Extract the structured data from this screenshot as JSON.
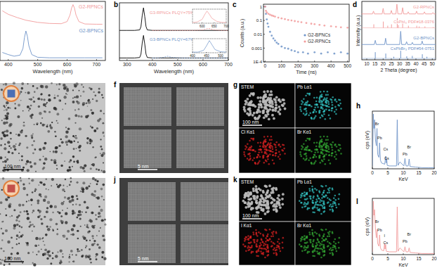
{
  "chart_data": [
    {
      "type": "line",
      "xlabel": "Wavelength (nm)",
      "xlim": [
        372,
        730
      ],
      "xticks": [
        400,
        500,
        600,
        700
      ],
      "ylim": [
        0,
        2.2
      ],
      "tick_labels": "x",
      "series": [
        {
          "name": "G2-RPNCs",
          "color": "#f29b9b",
          "x": [
            380,
            400,
            430,
            460,
            500,
            540,
            580,
            600,
            610,
            615,
            620,
            625,
            630,
            640,
            660,
            700,
            720
          ],
          "values": [
            1.85,
            1.72,
            1.6,
            1.5,
            1.42,
            1.38,
            1.37,
            1.45,
            1.7,
            1.95,
            2.08,
            1.95,
            1.7,
            1.45,
            1.36,
            1.35,
            1.35
          ]
        },
        {
          "name": "G2-BPNCs",
          "color": "#6f94c8",
          "x": [
            380,
            400,
            420,
            440,
            450,
            455,
            460,
            465,
            470,
            480,
            500,
            540,
            600,
            660,
            720
          ],
          "values": [
            0.3,
            0.22,
            0.16,
            0.2,
            0.45,
            0.85,
            1.1,
            0.9,
            0.55,
            0.22,
            0.12,
            0.1,
            0.1,
            0.1,
            0.1
          ]
        }
      ]
    },
    {
      "type": "line",
      "panel": "b",
      "xlabel": "Wavelength (nm)",
      "xlim": [
        270,
        700
      ],
      "xticks": [
        300,
        400,
        500,
        600,
        700
      ],
      "ylim": [
        0,
        2.3
      ],
      "tick_labels": "x",
      "series": [
        {
          "color": "#000000",
          "x": [
            270,
            300,
            330,
            350,
            355,
            360,
            365,
            370,
            375,
            380,
            400,
            450,
            500,
            600,
            700
          ],
          "values": [
            1.2,
            1.2,
            1.2,
            1.22,
            1.35,
            1.8,
            2.1,
            1.75,
            1.35,
            1.22,
            1.2,
            1.2,
            1.2,
            1.2,
            1.2
          ]
        },
        {
          "name": "G3-RPNCs PLQY=75%",
          "color": "#f29b9b",
          "line_style": "dashed",
          "x": [
            400,
            560,
            580,
            600,
            610,
            620,
            630,
            640,
            660,
            680,
            700
          ],
          "values": [
            1.2,
            1.2,
            1.21,
            1.22,
            1.25,
            1.28,
            1.26,
            1.23,
            1.21,
            1.2,
            1.2
          ]
        },
        {
          "color": "#000000",
          "x": [
            270,
            300,
            330,
            350,
            355,
            360,
            365,
            370,
            375,
            380,
            400,
            450,
            500,
            600,
            700
          ],
          "values": [
            0.1,
            0.1,
            0.1,
            0.12,
            0.25,
            0.7,
            1.0,
            0.65,
            0.25,
            0.12,
            0.1,
            0.1,
            0.1,
            0.1,
            0.1
          ]
        },
        {
          "name": "G3-BPNCs PLQY=67%",
          "color": "#6f94c8",
          "line_style": "dashed",
          "x": [
            400,
            420,
            440,
            450,
            460,
            470,
            480,
            500,
            520,
            600,
            700
          ],
          "values": [
            0.1,
            0.1,
            0.12,
            0.14,
            0.17,
            0.14,
            0.12,
            0.11,
            0.1,
            0.1,
            0.1
          ]
        }
      ]
    },
    {
      "type": "line",
      "xlim": [
        560,
        700
      ],
      "xticks": [
        600,
        650,
        700
      ],
      "ylim": [
        0,
        1.1
      ],
      "tick_labels": "x",
      "series": [
        {
          "color": "#f29b9b",
          "x": [
            560,
            580,
            600,
            610,
            620,
            630,
            640,
            660,
            680,
            700
          ],
          "values": [
            0.05,
            0.1,
            0.3,
            0.65,
            0.95,
            0.7,
            0.4,
            0.15,
            0.07,
            0.05
          ]
        }
      ]
    },
    {
      "type": "line",
      "xlim": [
        400,
        520
      ],
      "xticks": [
        400,
        450,
        500
      ],
      "ylim": [
        0,
        1.1
      ],
      "tick_labels": "x",
      "series": [
        {
          "color": "#6f94c8",
          "x": [
            400,
            420,
            440,
            450,
            460,
            470,
            480,
            500,
            520
          ],
          "values": [
            0.05,
            0.05,
            0.2,
            0.55,
            0.95,
            0.6,
            0.25,
            0.08,
            0.05
          ]
        }
      ]
    },
    {
      "type": "scatter",
      "panel": "c",
      "xlabel": "Time (ns)",
      "ylabel": "Counts (a.u.)",
      "log": "y",
      "xlim": [
        -10,
        510
      ],
      "xticks": [
        0,
        100,
        200,
        300,
        400,
        500
      ],
      "ylim": [
        0.0001,
        1.5
      ],
      "yticks": [
        1,
        0.1,
        0.01,
        0.001,
        {
          "value": 0.0001,
          "label": "1E-4"
        }
      ],
      "legend": "right",
      "marker": "circle",
      "series": [
        {
          "name": "G2-BPNCs",
          "color": "#6f94c8",
          "x": [
            0,
            5,
            10,
            15,
            20,
            30,
            40,
            50,
            60,
            70,
            80,
            100,
            120,
            140,
            160,
            180,
            200,
            230,
            260,
            300,
            340,
            380,
            420,
            460,
            500
          ],
          "values": [
            1,
            0.3,
            0.12,
            0.06,
            0.035,
            0.015,
            0.008,
            0.005,
            0.0035,
            0.0025,
            0.002,
            0.0013,
            0.001,
            0.0009,
            0.0007,
            0.0006,
            0.0005,
            0.0005,
            0.0004,
            0.0005,
            0.0004,
            0.0005,
            0.0004,
            0.0005,
            0.0004
          ]
        },
        {
          "name": "G2-RPNCs",
          "color": "#f29b9b",
          "x": [
            0,
            5,
            10,
            20,
            30,
            40,
            50,
            60,
            80,
            100,
            120,
            140,
            160,
            180,
            200,
            220,
            250,
            280,
            300,
            330,
            360,
            400,
            430,
            460,
            500
          ],
          "values": [
            1,
            0.5,
            0.38,
            0.3,
            0.26,
            0.23,
            0.21,
            0.19,
            0.16,
            0.14,
            0.125,
            0.11,
            0.1,
            0.09,
            0.082,
            0.075,
            0.066,
            0.058,
            0.054,
            0.048,
            0.043,
            0.038,
            0.035,
            0.032,
            0.03
          ]
        }
      ]
    },
    {
      "type": "line",
      "panel": "d",
      "xlabel": "2 Theta (degree)",
      "ylabel": "Intensity (a.u.)",
      "xlim": [
        7,
        52
      ],
      "xticks": [
        10,
        15,
        20,
        25,
        30,
        35,
        40,
        45,
        50
      ],
      "ylim": [
        0,
        4.2
      ],
      "tick_labels": "x",
      "series": [
        {
          "name": "G2-RPNCs",
          "color": "#f29b9b",
          "x": [
            7,
            13.5,
            14.1,
            14.7,
            19.4,
            20.0,
            20.6,
            24.4,
            25.0,
            25.6,
            27.8,
            28.4,
            29.0,
            31.3,
            31.9,
            32.5,
            34.7,
            35.3,
            35.9,
            39.8,
            40.4,
            41.0,
            44.6,
            45.2,
            45.8,
            49.8,
            50.4,
            51,
            52
          ],
          "values": [
            3.3,
            3.3,
            3.5,
            3.3,
            3.3,
            3.7,
            3.3,
            3.3,
            3.55,
            3.3,
            3.3,
            4.0,
            3.3,
            3.3,
            3.75,
            3.3,
            3.3,
            3.45,
            3.3,
            3.3,
            3.5,
            3.3,
            3.3,
            3.45,
            3.3,
            3.3,
            3.4,
            3.3,
            3.3
          ]
        },
        {
          "name": "CsPbI₃ PDF#18-0376",
          "type": "stem",
          "color": "#f29b9b",
          "base": 2.3,
          "x": [
            14.3,
            20.1,
            22.8,
            25.1,
            28.6,
            29.3,
            31.9,
            35.4,
            40.5,
            42.0,
            45.5,
            50.5
          ],
          "values": [
            2.55,
            2.75,
            2.45,
            2.55,
            3.0,
            2.5,
            2.8,
            2.45,
            2.45,
            2.4,
            2.4,
            2.35
          ]
        },
        {
          "name": "G2-BPNCs",
          "color": "#6f94c8",
          "x": [
            7,
            14.6,
            15.2,
            15.8,
            20.9,
            21.5,
            22.1,
            30.1,
            30.7,
            31.3,
            33.7,
            34.3,
            34.9,
            37.2,
            37.8,
            38.4,
            43.2,
            43.8,
            44.4,
            52
          ],
          "values": [
            1.1,
            1.1,
            1.4,
            1.1,
            1.1,
            1.55,
            1.1,
            1.1,
            2.05,
            1.1,
            1.1,
            1.3,
            1.1,
            1.1,
            1.25,
            1.1,
            1.1,
            1.35,
            1.1,
            1.1
          ]
        },
        {
          "name": "CsPbBr₃ PDF#54-0751",
          "type": "stem",
          "color": "#6f94c8",
          "base": 0.1,
          "x": [
            15.2,
            21.6,
            26.5,
            30.7,
            34.4,
            37.8,
            43.9,
            46.7
          ],
          "values": [
            0.55,
            0.45,
            0.22,
            0.65,
            0.25,
            0.28,
            0.4,
            0.22
          ]
        }
      ]
    },
    {
      "type": "line",
      "panel": "h",
      "xlabel": "KeV",
      "ylabel": "cps (eV)",
      "xlim": [
        0,
        20
      ],
      "xticks": [
        0,
        5,
        10,
        15,
        20
      ],
      "ylim": [
        0,
        1
      ],
      "tick_labels": "x",
      "series": [
        {
          "color": "#6f94c8",
          "x": [
            0,
            0.2,
            0.3,
            0.5,
            0.7,
            1,
            1.3,
            1.5,
            1.7,
            2.1,
            2.35,
            2.6,
            3,
            4,
            4.3,
            4.5,
            4.65,
            4.8,
            5.5,
            7.8,
            8.05,
            8.3,
            8.9,
            10.2,
            10.55,
            10.9,
            11.6,
            11.9,
            12.2,
            14,
            16,
            18,
            20
          ],
          "values": [
            0.05,
            0.55,
            0.95,
            0.7,
            0.85,
            0.5,
            0.4,
            0.7,
            0.25,
            0.2,
            0.45,
            0.15,
            0.1,
            0.08,
            0.22,
            0.1,
            0.18,
            0.06,
            0.05,
            0.05,
            0.85,
            0.06,
            0.12,
            0.05,
            0.18,
            0.05,
            0.05,
            0.17,
            0.04,
            0.03,
            0.02,
            0.02,
            0.02
          ]
        }
      ],
      "annotations": [
        {
          "text": "Br",
          "x": 1.5,
          "y": 0.75
        },
        {
          "text": "Pb",
          "x": 2.35,
          "y": 0.5
        },
        {
          "text": "Cs",
          "x": 4.3,
          "y": 0.3
        },
        {
          "text": "Cs",
          "x": 4.65,
          "y": 0.15
        },
        {
          "text": "Pb",
          "x": 10.55,
          "y": 0.22
        },
        {
          "text": "Br",
          "x": 11.9,
          "y": 0.34
        }
      ]
    },
    {
      "type": "line",
      "panel": "l",
      "xlabel": "KeV",
      "ylabel": "cps (eV)",
      "xlim": [
        0,
        20
      ],
      "xticks": [
        0,
        5,
        10,
        15,
        20
      ],
      "ylim": [
        0,
        1
      ],
      "tick_labels": "x",
      "series": [
        {
          "color": "#f29b9b",
          "x": [
            0,
            0.2,
            0.3,
            0.5,
            0.7,
            1,
            1.3,
            1.5,
            1.7,
            2.1,
            2.35,
            2.6,
            3,
            3.7,
            3.94,
            4.1,
            4.3,
            4.5,
            5.5,
            7.8,
            8.05,
            8.3,
            8.9,
            10.2,
            10.55,
            10.9,
            11.6,
            11.9,
            12.2,
            14,
            16,
            18,
            20
          ],
          "values": [
            0.05,
            0.6,
            0.95,
            0.7,
            0.8,
            0.45,
            0.3,
            0.45,
            0.2,
            0.15,
            0.35,
            0.12,
            0.08,
            0.07,
            0.2,
            0.1,
            0.18,
            0.06,
            0.05,
            0.05,
            0.85,
            0.06,
            0.12,
            0.05,
            0.14,
            0.05,
            0.05,
            0.12,
            0.04,
            0.03,
            0.02,
            0.02,
            0.02
          ]
        }
      ],
      "annotations": [
        {
          "text": "Br",
          "x": 1.5,
          "y": 0.55
        },
        {
          "text": "Pb",
          "x": 2.35,
          "y": 0.4
        },
        {
          "text": "I",
          "x": 3.94,
          "y": 0.3
        },
        {
          "text": "Cs",
          "x": 4.3,
          "y": 0.18
        },
        {
          "text": "Pb",
          "x": 10.55,
          "y": 0.2
        },
        {
          "text": "Br",
          "x": 11.9,
          "y": 0.32
        }
      ]
    }
  ],
  "images": [
    {
      "scale_bar": "100 nm"
    },
    {
      "panel": "f",
      "scale_bar": "5 nm"
    },
    {
      "panel": "g",
      "scale_bar": "100 nm",
      "maps": [
        "STEM",
        "Pb Lα1",
        "Cl Kα1",
        "Br Kα1"
      ],
      "colors": [
        "#bdbdbd",
        "#33c4c4",
        "#dd2222",
        "#33aa33"
      ]
    },
    {
      "scale_bar": "100 nm"
    },
    {
      "panel": "j",
      "scale_bar": "5 nm"
    },
    {
      "panel": "k",
      "scale_bar": "100 nm",
      "maps": [
        "STEM",
        "Pb Lα1",
        "I Kα1",
        "Br Kα1"
      ],
      "colors": [
        "#bdbdbd",
        "#33c4c4",
        "#dd2222",
        "#33aa33"
      ]
    }
  ]
}
